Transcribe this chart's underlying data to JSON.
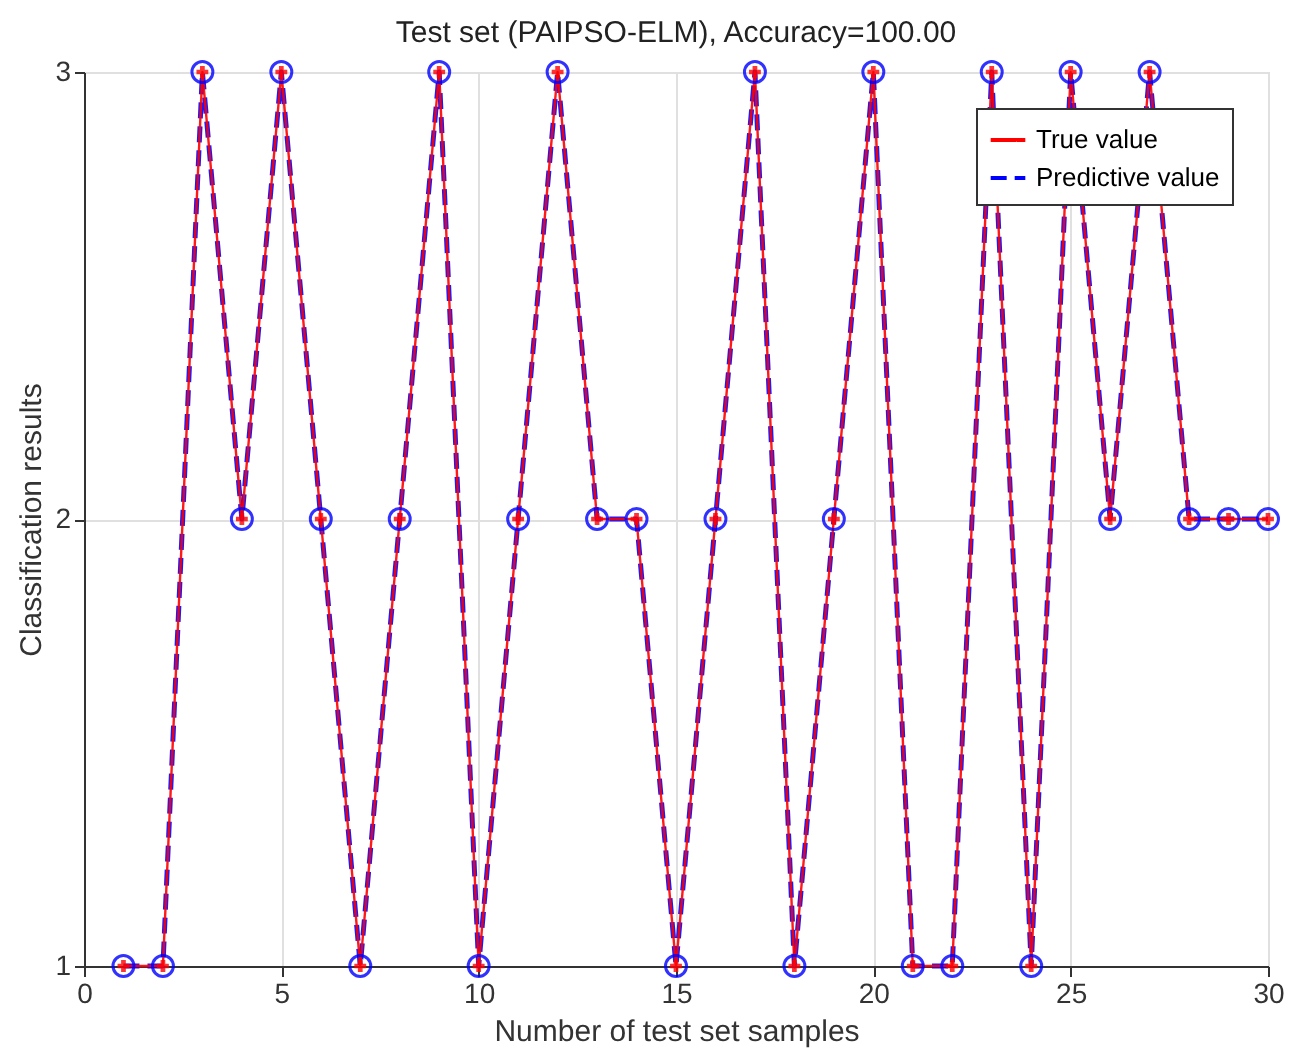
{
  "chart_data": {
    "type": "line",
    "title": "Test set (PAIPSO-ELM), Accuracy=100.00",
    "xlabel": "Number of test set samples",
    "ylabel": "Classification results",
    "x": [
      1,
      2,
      3,
      4,
      5,
      6,
      7,
      8,
      9,
      10,
      11,
      12,
      13,
      14,
      15,
      16,
      17,
      18,
      19,
      20,
      21,
      22,
      23,
      24,
      25,
      26,
      27,
      28,
      29,
      30
    ],
    "series": [
      {
        "name": "True value",
        "color": "#ff0000",
        "marker": "cross",
        "line_style": "solid",
        "values": [
          1,
          1,
          3,
          2,
          3,
          2,
          1,
          2,
          3,
          1,
          2,
          3,
          2,
          2,
          1,
          2,
          3,
          1,
          2,
          3,
          1,
          1,
          3,
          1,
          3,
          2,
          3,
          2,
          2,
          2
        ]
      },
      {
        "name": "Predictive value",
        "color": "#0000ff",
        "marker": "circle",
        "line_style": "dashed",
        "values": [
          1,
          1,
          3,
          2,
          3,
          2,
          1,
          2,
          3,
          1,
          2,
          3,
          2,
          2,
          1,
          2,
          3,
          1,
          2,
          3,
          1,
          1,
          3,
          1,
          3,
          2,
          3,
          2,
          2,
          2
        ]
      }
    ],
    "xlim": [
      0,
      30
    ],
    "xticks": [
      0,
      5,
      10,
      15,
      20,
      25,
      30
    ],
    "ylim": [
      1,
      3
    ],
    "yticks": [
      1,
      2,
      3
    ],
    "grid": true,
    "legend": "top right"
  }
}
